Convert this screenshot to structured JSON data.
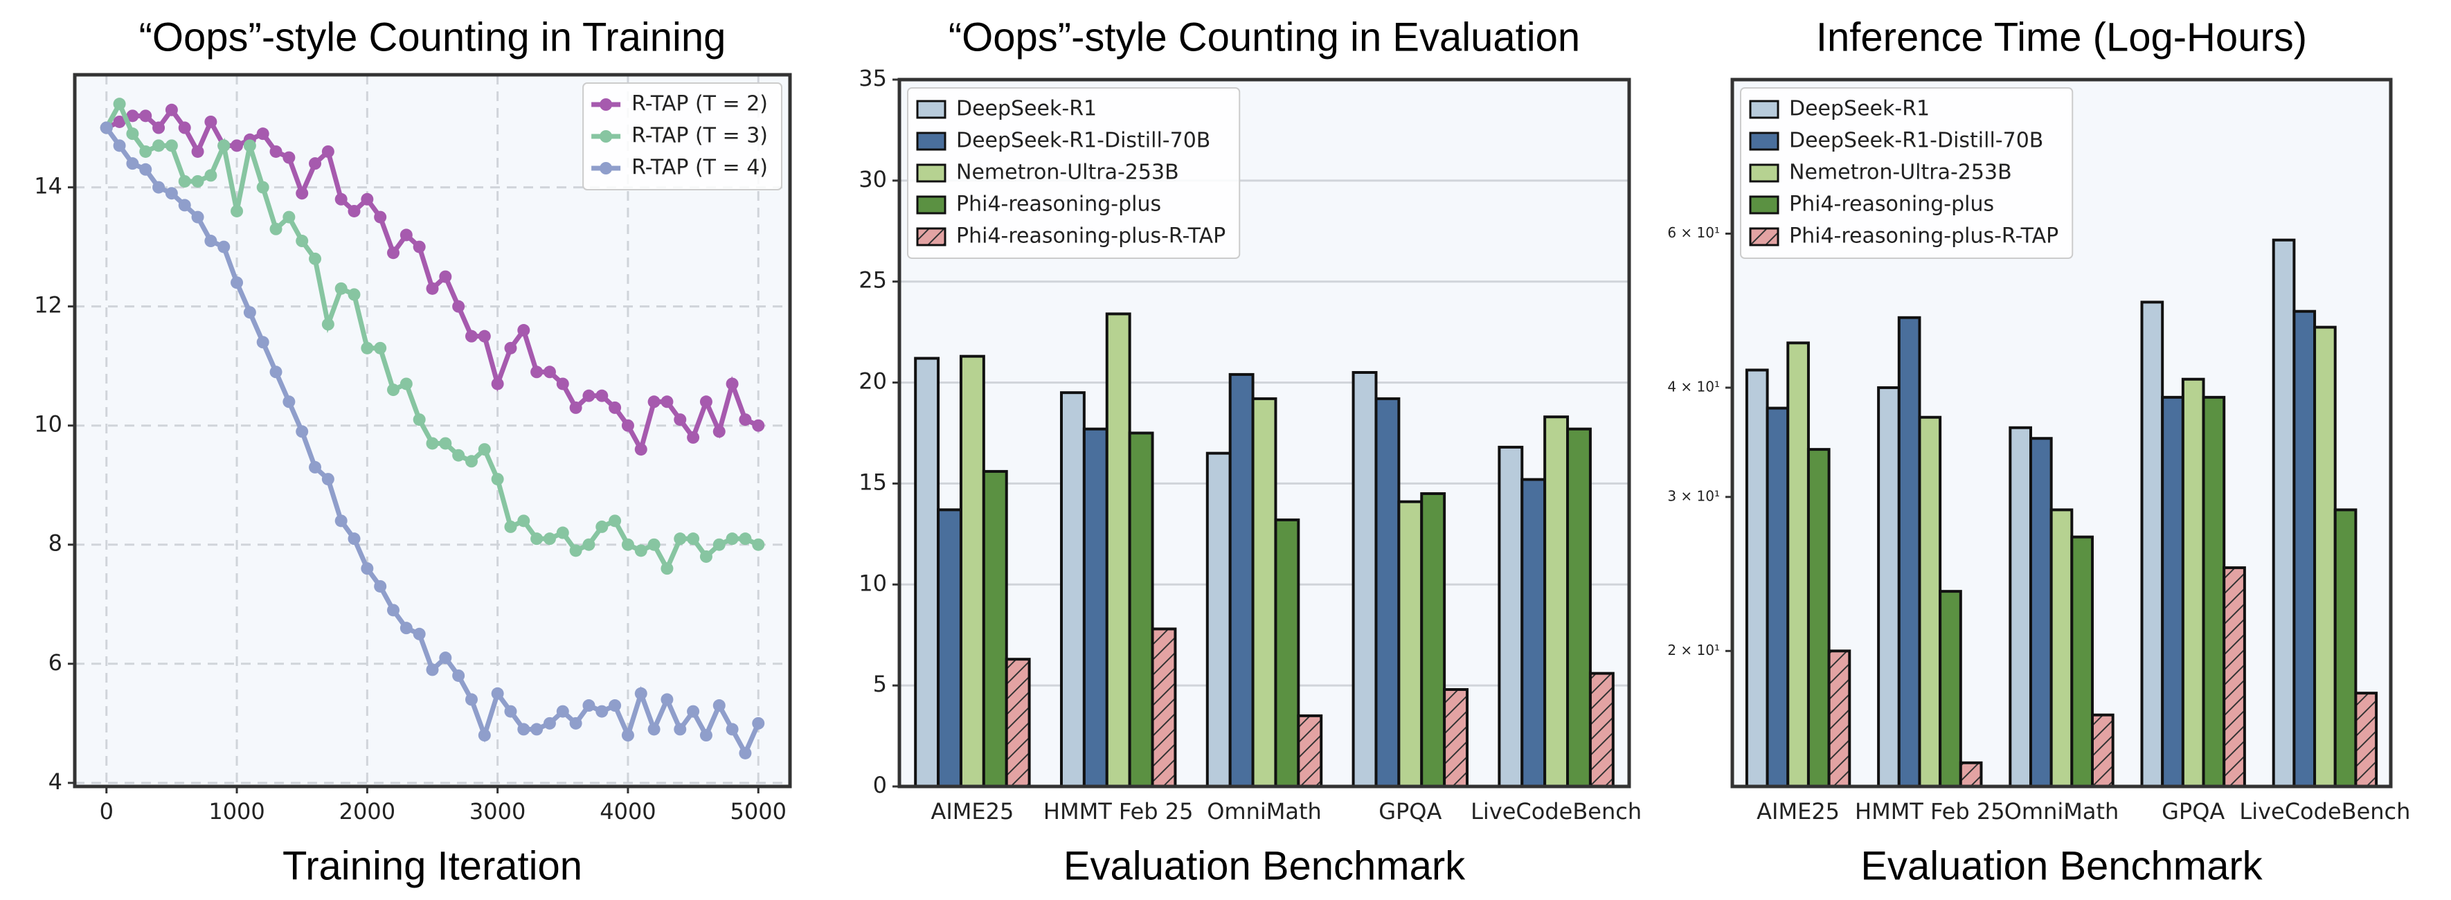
{
  "chart_data": [
    {
      "type": "line",
      "title": "“Oops”-style Counting in Training",
      "xlabel": "Training Iteration",
      "x": [
        0,
        100,
        200,
        300,
        400,
        500,
        600,
        700,
        800,
        900,
        1000,
        1100,
        1200,
        1300,
        1400,
        1500,
        1600,
        1700,
        1800,
        1900,
        2000,
        2100,
        2200,
        2300,
        2400,
        2500,
        2600,
        2700,
        2800,
        2900,
        3000,
        3100,
        3200,
        3300,
        3400,
        3500,
        3600,
        3700,
        3800,
        3900,
        4000,
        4100,
        4200,
        4300,
        4400,
        4500,
        4600,
        4700,
        4800,
        4900,
        5000
      ],
      "xlim": [
        -243,
        5243
      ],
      "xticks": [
        0,
        1000,
        2000,
        3000,
        4000,
        5000
      ],
      "ylim": [
        3.94,
        15.89
      ],
      "yticks": [
        4,
        6,
        8,
        10,
        12,
        14
      ],
      "grid": "both",
      "legend": "upper right",
      "series": [
        {
          "name": "R-TAP (T = 2)",
          "color": "#a65aae",
          "values": [
            15.0,
            15.1,
            15.2,
            15.2,
            15.0,
            15.3,
            15.0,
            14.6,
            15.1,
            14.7,
            14.7,
            14.8,
            14.9,
            14.6,
            14.5,
            13.9,
            14.4,
            14.6,
            13.8,
            13.6,
            13.8,
            13.5,
            12.9,
            13.2,
            13.0,
            12.3,
            12.5,
            12.0,
            11.5,
            11.5,
            10.7,
            11.3,
            11.6,
            10.9,
            10.9,
            10.7,
            10.3,
            10.5,
            10.5,
            10.3,
            10.0,
            9.6,
            10.4,
            10.4,
            10.1,
            9.8,
            10.4,
            9.9,
            10.7,
            10.1,
            10.0
          ]
        },
        {
          "name": "R-TAP (T = 3)",
          "color": "#87c5a1",
          "values": [
            15.0,
            15.4,
            14.9,
            14.6,
            14.7,
            14.7,
            14.1,
            14.1,
            14.2,
            14.7,
            13.6,
            14.7,
            14.0,
            13.3,
            13.5,
            13.1,
            12.8,
            11.7,
            12.3,
            12.2,
            11.3,
            11.3,
            10.6,
            10.7,
            10.1,
            9.7,
            9.7,
            9.5,
            9.4,
            9.6,
            9.1,
            8.3,
            8.4,
            8.1,
            8.1,
            8.2,
            7.9,
            8.0,
            8.3,
            8.4,
            8.0,
            7.9,
            8.0,
            7.6,
            8.1,
            8.1,
            7.8,
            8.0,
            8.1,
            8.1,
            8.0
          ]
        },
        {
          "name": "R-TAP (T = 4)",
          "color": "#8f9ecb",
          "values": [
            15.0,
            14.7,
            14.4,
            14.3,
            14.0,
            13.9,
            13.7,
            13.5,
            13.1,
            13.0,
            12.4,
            11.9,
            11.4,
            10.9,
            10.4,
            9.9,
            9.3,
            9.1,
            8.4,
            8.1,
            7.6,
            7.3,
            6.9,
            6.6,
            6.5,
            5.9,
            6.1,
            5.8,
            5.4,
            4.8,
            5.5,
            5.2,
            4.9,
            4.9,
            5.0,
            5.2,
            5.0,
            5.3,
            5.2,
            5.3,
            4.8,
            5.5,
            4.9,
            5.4,
            4.9,
            5.2,
            4.8,
            5.3,
            4.9,
            4.5,
            5.0
          ]
        }
      ]
    },
    {
      "type": "bar",
      "title": "“Oops”-style Counting in Evaluation",
      "xlabel": "Evaluation Benchmark",
      "categories": [
        "AIME25",
        "HMMT Feb 25",
        "OmniMath",
        "GPQA",
        "LiveCodeBench"
      ],
      "ylim": [
        0,
        35
      ],
      "yticks": [
        0,
        5,
        10,
        15,
        20,
        25,
        30,
        35
      ],
      "grid": "y",
      "legend": "upper left",
      "series": [
        {
          "name": "DeepSeek-R1",
          "color": "#b8cbdb",
          "values": [
            21.2,
            19.5,
            16.5,
            20.5,
            16.8
          ]
        },
        {
          "name": "DeepSeek-R1-Distill-70B",
          "color": "#4a6f9c",
          "values": [
            13.7,
            17.7,
            20.4,
            19.2,
            15.2
          ]
        },
        {
          "name": "Nemetron-Ultra-253B",
          "color": "#b6d291",
          "values": [
            21.3,
            23.4,
            19.2,
            14.1,
            18.3
          ]
        },
        {
          "name": "Phi4-reasoning-plus",
          "color": "#5b9142",
          "values": [
            15.6,
            17.5,
            13.2,
            14.5,
            17.7
          ]
        },
        {
          "name": "Phi4-reasoning-plus-R-TAP",
          "color": "#e3a3a3",
          "hatch": true,
          "values": [
            6.3,
            7.8,
            3.5,
            4.8,
            5.6
          ]
        }
      ]
    },
    {
      "type": "bar",
      "title": "Inference Time (Log-Hours)",
      "xlabel": "Evaluation Benchmark",
      "categories": [
        "AIME25",
        "HMMT Feb 25",
        "OmniMath",
        "GPQA",
        "LiveCodeBench"
      ],
      "ylim": [
        14,
        90
      ],
      "log": true,
      "legend": "upper left",
      "yticks": [
        {
          "value": 20,
          "label": "2 × 10¹"
        },
        {
          "value": 30,
          "label": "3 × 10¹"
        },
        {
          "value": 40,
          "label": "4 × 10¹"
        },
        {
          "value": 60,
          "label": "6 × 10¹"
        }
      ],
      "series": [
        {
          "name": "DeepSeek-R1",
          "color": "#b8cbdb",
          "values": [
            41.9,
            40.0,
            36.0,
            50.1,
            59.0
          ]
        },
        {
          "name": "DeepSeek-R1-Distill-70B",
          "color": "#4a6f9c",
          "values": [
            37.9,
            48.1,
            35.0,
            39.0,
            48.9
          ]
        },
        {
          "name": "Nemetron-Ultra-253B",
          "color": "#b6d291",
          "values": [
            45.0,
            37.0,
            29.0,
            40.9,
            46.9
          ]
        },
        {
          "name": "Phi4-reasoning-plus",
          "color": "#5b9142",
          "values": [
            34.0,
            23.4,
            27.0,
            39.0,
            29.0
          ]
        },
        {
          "name": "Phi4-reasoning-plus-R-TAP",
          "color": "#e3a3a3",
          "hatch": true,
          "values": [
            20.0,
            14.9,
            16.9,
            24.9,
            17.9
          ]
        }
      ]
    }
  ]
}
